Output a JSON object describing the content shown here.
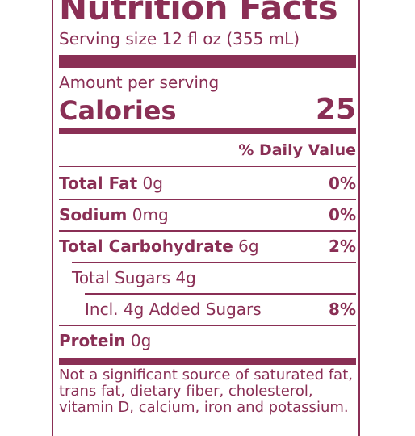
{
  "label": {
    "title": "Nutrition Facts",
    "serving_size": "Serving size 12 fl oz (355 mL)",
    "amount_per_serving": "Amount per serving",
    "calories_label": "Calories",
    "calories_value": "25",
    "daily_value_header": "% Daily Value",
    "rows": [
      {
        "bold": "Total Fat",
        "rest": " 0g",
        "pct": "0%"
      },
      {
        "bold": "Sodium",
        "rest": " 0mg",
        "pct": "0%"
      },
      {
        "bold": "Total Carbohydrate",
        "rest": " 6g",
        "pct": "2%"
      },
      {
        "bold": "",
        "rest": "Total Sugars 4g",
        "pct": ""
      },
      {
        "bold": "",
        "rest": "Incl. 4g Added Sugars",
        "pct": "8%"
      },
      {
        "bold": "Protein",
        "rest": " 0g",
        "pct": ""
      }
    ],
    "footnote": "Not a significant source of saturated fat, trans fat, dietary fiber, cholesterol, vitamin D, calcium, iron and potassium."
  },
  "colors": {
    "ink": "#8a2f55",
    "background": "#ffffff"
  }
}
